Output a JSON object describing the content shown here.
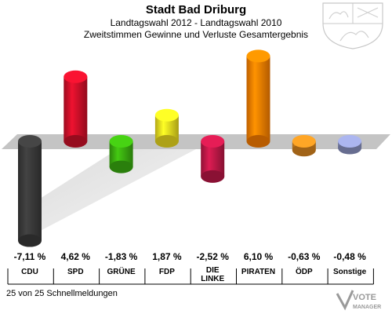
{
  "chart_data": {
    "type": "bar",
    "title": "Stadt Bad Driburg",
    "subtitle_lines": [
      "Landtagswahl 2012 - Landtagswahl 2010",
      "Zweitstimmen Gewinne und Verluste Gesamtergebnis"
    ],
    "categories": [
      "CDU",
      "SPD",
      "GRÜNE",
      "FDP",
      "DIE LINKE",
      "PIRATEN",
      "ÖDP",
      "Sonstige"
    ],
    "values": [
      -7.11,
      4.62,
      -1.83,
      1.87,
      -2.52,
      6.1,
      -0.63,
      -0.48
    ],
    "value_labels": [
      "-7,11 %",
      "4,62 %",
      "-1,83 %",
      "1,87 %",
      "-2,52 %",
      "6,10 %",
      "-0,63 %",
      "-0,48 %"
    ],
    "colors": [
      "#3a3a3a",
      "#d0102a",
      "#3bb010",
      "#f0e020",
      "#c01848",
      "#ff8000",
      "#e08a20",
      "#8f98c8"
    ],
    "ylim": [
      -8,
      7
    ],
    "legend": "none",
    "grid": false
  },
  "footer": "25 von 25 Schnellmeldungen",
  "icons": {
    "coat_of_arms": "coat-of-arms-icon",
    "logo": "vote-manager-logo-icon"
  },
  "logo_text": "VOTE MANAGER"
}
